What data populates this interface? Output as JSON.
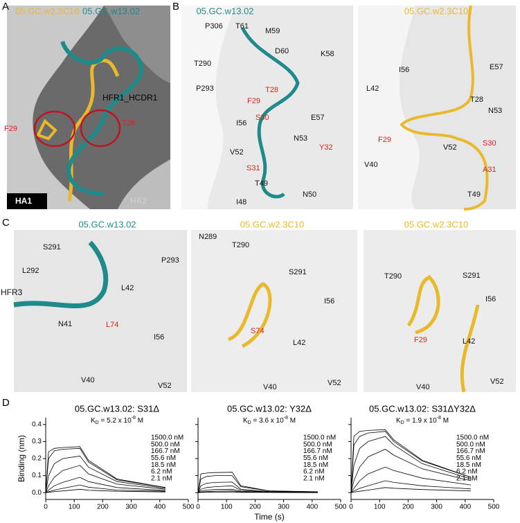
{
  "panel_labels": [
    "A",
    "B",
    "C",
    "D"
  ],
  "panel_a": {
    "legend": [
      "05.GC.w2.3C10",
      "05.GC.w13.02"
    ],
    "labels": [
      "HFR1_HCDR1",
      "F29",
      "T28",
      "HA1",
      "HA2"
    ]
  },
  "panel_b_left": {
    "title": "05.GC.w13.02",
    "residues": [
      "P306",
      "T61",
      "M59",
      "D60",
      "K58",
      "T290",
      "T28",
      "P293",
      "F29",
      "S30",
      "E57",
      "I56",
      "N53",
      "Y32",
      "V52",
      "S31",
      "T49",
      "I48",
      "N50"
    ]
  },
  "panel_b_right": {
    "title": "05.GC.w2.3C10",
    "residues": [
      "I56",
      "E57",
      "L42",
      "T28",
      "N53",
      "F29",
      "S30",
      "V52",
      "V40",
      "A31",
      "T49"
    ]
  },
  "panel_c_left": {
    "title": "05.GC.w13.02",
    "residues": [
      "S291",
      "P293",
      "L292",
      "HFR3",
      "L42",
      "N41",
      "L74",
      "I56",
      "V40",
      "V52"
    ]
  },
  "panel_c_mid": {
    "title": "05.GC.w2.3C10",
    "residues": [
      "N289",
      "T290",
      "S291",
      "I56",
      "S74",
      "L42",
      "V40",
      "V52"
    ]
  },
  "panel_c_right": {
    "title": "05.GC.w2.3C10",
    "residues": [
      "T290",
      "S291",
      "I56",
      "F29",
      "L42",
      "V40",
      "V52"
    ]
  },
  "chart_data": [
    {
      "type": "line",
      "title": "05.GC.w13.02: S31Δ",
      "subtitle": {
        "symbol": "K",
        "subscript": "D",
        "text": " = 5.2 x 10",
        "superscript": "-8",
        "unit": " M"
      },
      "y_label": "Binding (nm)",
      "x": [
        0,
        10,
        30,
        60,
        120,
        150,
        250,
        420
      ],
      "xlim": [
        0,
        500
      ],
      "xticks": [
        0,
        100,
        200,
        300,
        400,
        500
      ],
      "ylim": [
        -0.04,
        0.44
      ],
      "yticks": [
        {
          "value": 0,
          "label": "0.0"
        },
        {
          "value": 0.1,
          "label": "0.1"
        },
        {
          "value": 0.2,
          "label": "0.2"
        },
        {
          "value": 0.3,
          "label": "0.3"
        },
        {
          "value": 0.4,
          "label": "0.4"
        }
      ],
      "series": [
        {
          "name": "1500.0 nM",
          "color": "#000000",
          "values": [
            0,
            0.24,
            0.26,
            0.265,
            0.27,
            0.19,
            0.08,
            0.03
          ]
        },
        {
          "name": "500.0 nM",
          "color": "#000000",
          "values": [
            0,
            0.2,
            0.245,
            0.255,
            0.26,
            0.18,
            0.075,
            0.03
          ]
        },
        {
          "name": "166.7 nM",
          "color": "#000000",
          "values": [
            0,
            0.1,
            0.17,
            0.2,
            0.215,
            0.15,
            0.065,
            0.025
          ]
        },
        {
          "name": "55.6 nM",
          "color": "#000000",
          "values": [
            0,
            0.04,
            0.09,
            0.13,
            0.16,
            0.11,
            0.05,
            0.02
          ]
        },
        {
          "name": "18.5 nM",
          "color": "#000000",
          "values": [
            0,
            0.015,
            0.04,
            0.06,
            0.09,
            0.065,
            0.03,
            0.012
          ]
        },
        {
          "name": "6.2 nM",
          "color": "#000000",
          "values": [
            0,
            0.005,
            0.015,
            0.025,
            0.045,
            0.032,
            0.015,
            0.008
          ]
        },
        {
          "name": "2.1 nM",
          "color": "#000000",
          "values": [
            0,
            0.002,
            0.006,
            0.01,
            0.02,
            0.014,
            0.008,
            0.004
          ]
        }
      ]
    },
    {
      "type": "line",
      "title": "05.GC.w13.02: Y32Δ",
      "subtitle": {
        "symbol": "K",
        "subscript": "D",
        "text": " = 3.6 x 10",
        "superscript": "-8",
        "unit": " M"
      },
      "x_label": "Time (s)",
      "x": [
        0,
        10,
        30,
        60,
        120,
        150,
        250,
        420
      ],
      "xlim": [
        0,
        500
      ],
      "xticks": [
        0,
        100,
        200,
        300,
        400,
        500
      ],
      "ylim": [
        -0.04,
        0.44
      ],
      "yticks": [
        0,
        0.1,
        0.2,
        0.3,
        0.4
      ],
      "series": [
        {
          "name": "1500.0 nM",
          "color": "#000000",
          "values": [
            0,
            0.11,
            0.115,
            0.118,
            0.12,
            0.04,
            0.01,
            0.005
          ]
        },
        {
          "name": "500.0 nM",
          "color": "#000000",
          "values": [
            0,
            0.08,
            0.095,
            0.1,
            0.1,
            0.035,
            0.01,
            0.004
          ]
        },
        {
          "name": "166.7 nM",
          "color": "#000000",
          "values": [
            0,
            0.04,
            0.055,
            0.06,
            0.062,
            0.02,
            0.006,
            0.003
          ]
        },
        {
          "name": "55.6 nM",
          "color": "#000000",
          "values": [
            0,
            0.02,
            0.03,
            0.035,
            0.04,
            0.013,
            0.004,
            0.002
          ]
        },
        {
          "name": "18.5 nM",
          "color": "#000000",
          "values": [
            0,
            0.01,
            0.015,
            0.018,
            0.02,
            0.007,
            0.003,
            0.001
          ]
        },
        {
          "name": "6.2 nM",
          "color": "#000000",
          "values": [
            0,
            0.004,
            0.006,
            0.008,
            0.01,
            0.004,
            0.002,
            0.001
          ]
        },
        {
          "name": "2.1 nM",
          "color": "#000000",
          "values": [
            0,
            0.001,
            0.002,
            0.003,
            0.004,
            0.002,
            0.001,
            0
          ]
        }
      ]
    },
    {
      "type": "line",
      "title": "05.GC.w13.02: S31ΔY32Δ",
      "subtitle": {
        "symbol": "K",
        "subscript": "D",
        "text": " = 1.9 x 10",
        "superscript": "-8",
        "unit": " M"
      },
      "x": [
        0,
        10,
        30,
        60,
        120,
        150,
        250,
        420
      ],
      "xlim": [
        0,
        500
      ],
      "xticks": [
        0,
        100,
        200,
        300,
        400,
        500
      ],
      "ylim": [
        -0.04,
        0.44
      ],
      "yticks": [
        0,
        0.1,
        0.2,
        0.3,
        0.4
      ],
      "series": [
        {
          "name": "1500.0 nM",
          "color": "#000000",
          "values": [
            0,
            0.33,
            0.36,
            0.365,
            0.37,
            0.31,
            0.19,
            0.09
          ]
        },
        {
          "name": "500.0 nM",
          "color": "#000000",
          "values": [
            0,
            0.28,
            0.33,
            0.35,
            0.36,
            0.3,
            0.185,
            0.09
          ]
        },
        {
          "name": "166.7 nM",
          "color": "#000000",
          "values": [
            0,
            0.16,
            0.26,
            0.3,
            0.33,
            0.28,
            0.17,
            0.08
          ]
        },
        {
          "name": "55.6 nM",
          "color": "#000000",
          "values": [
            0,
            0.07,
            0.15,
            0.21,
            0.255,
            0.22,
            0.14,
            0.07
          ]
        },
        {
          "name": "18.5 nM",
          "color": "#000000",
          "values": [
            0,
            0.025,
            0.07,
            0.11,
            0.15,
            0.13,
            0.085,
            0.045
          ]
        },
        {
          "name": "6.2 nM",
          "color": "#000000",
          "values": [
            0,
            0.01,
            0.025,
            0.04,
            0.07,
            0.06,
            0.04,
            0.022
          ]
        },
        {
          "name": "2.1 nM",
          "color": "#000000",
          "values": [
            0,
            0.003,
            0.008,
            0.015,
            0.03,
            0.026,
            0.018,
            0.01
          ]
        }
      ]
    }
  ]
}
